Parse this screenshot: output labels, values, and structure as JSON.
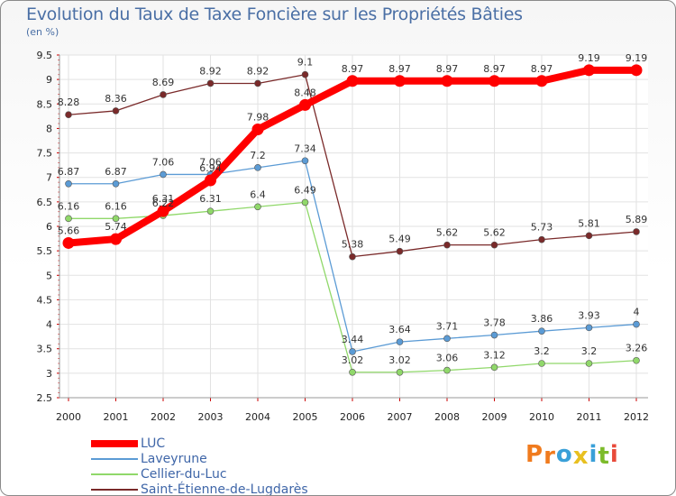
{
  "title": "Evolution du Taux de Taxe Foncière sur les Propriétés Bâties",
  "unit_label": "(en %)",
  "brand": {
    "letters": [
      "P",
      "r",
      "o",
      "x",
      "i",
      "t",
      "i"
    ],
    "colors": [
      "#f07b1e",
      "#f07b1e",
      "#3aa0d8",
      "#e8c020",
      "#3aa0d8",
      "#7cbb2a",
      "#e84a3a"
    ]
  },
  "chart_data": {
    "type": "line",
    "title": "Evolution du Taux de Taxe Foncière sur les Propriétés Bâties",
    "ylabel": "(en %)",
    "xlabel": "",
    "x": [
      "2000",
      "2001",
      "2002",
      "2003",
      "2004",
      "2005",
      "2006",
      "2007",
      "2008",
      "2009",
      "2010",
      "2011",
      "2012"
    ],
    "ylim": [
      2.5,
      9.5
    ],
    "yticks": [
      "2.5",
      "3",
      "3.5",
      "4",
      "4.5",
      "5",
      "5.5",
      "6",
      "6.5",
      "7",
      "7.5",
      "8",
      "8.5",
      "9",
      "9.5"
    ],
    "grid": true,
    "series": [
      {
        "name": "LUC",
        "color": "#ff0000",
        "values": [
          5.66,
          5.74,
          6.31,
          6.94,
          7.98,
          8.48,
          8.97,
          8.97,
          8.97,
          8.97,
          8.97,
          9.19,
          9.19
        ],
        "labels": [
          "5.66",
          "5.74",
          "6.31",
          "6.94",
          "7.98",
          "8.48",
          "8.97",
          "8.97",
          "8.97",
          "8.97",
          "8.97",
          "9.19",
          "9.19"
        ]
      },
      {
        "name": "Laveyrune",
        "color": "#5b9bd5",
        "values": [
          6.87,
          6.87,
          7.06,
          7.06,
          7.2,
          7.34,
          3.44,
          3.64,
          3.71,
          3.78,
          3.86,
          3.93,
          4
        ],
        "labels": [
          "6.87",
          "6.87",
          "7.06",
          "7.06",
          "7.2",
          "7.34",
          "3.44",
          "3.64",
          "3.71",
          "3.78",
          "3.86",
          "3.93",
          "4"
        ]
      },
      {
        "name": "Cellier-du-Luc",
        "color": "#90d86a",
        "values": [
          6.16,
          6.16,
          6.22,
          6.31,
          6.4,
          6.49,
          3.02,
          3.02,
          3.06,
          3.12,
          3.2,
          3.2,
          3.26
        ],
        "labels": [
          "6.16",
          "6.16",
          "6.22",
          "6.31",
          "6.4",
          "6.49",
          "3.02",
          "3.02",
          "3.06",
          "3.12",
          "3.2",
          "3.2",
          "3.26"
        ]
      },
      {
        "name": "Saint-Étienne-de-Lugdarès",
        "color": "#7a2a2a",
        "values": [
          8.28,
          8.36,
          8.69,
          8.92,
          8.92,
          9.1,
          5.38,
          5.49,
          5.62,
          5.62,
          5.73,
          5.81,
          5.89
        ],
        "labels": [
          "8.28",
          "8.36",
          "8.69",
          "8.92",
          "8.92",
          "9.1",
          "5.38",
          "5.49",
          "5.62",
          "5.62",
          "5.73",
          "5.81",
          "5.89"
        ]
      }
    ],
    "legend_position": "bottom-left"
  }
}
